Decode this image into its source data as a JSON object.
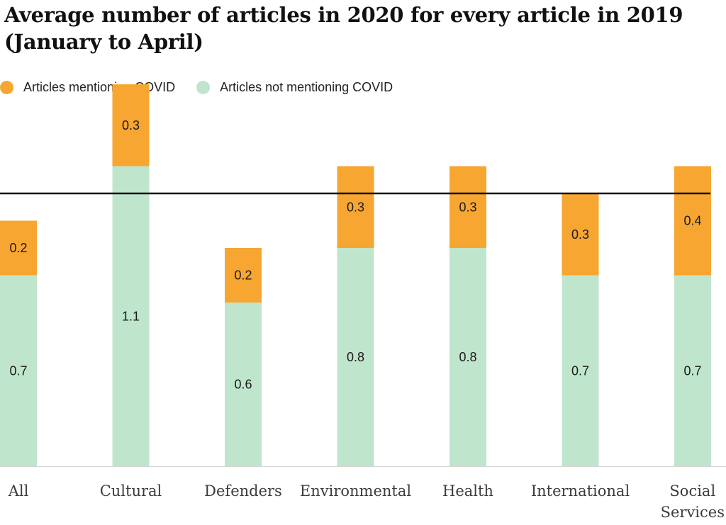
{
  "title": {
    "line1": "Average number of articles in 2020 for every article in 2019",
    "line2": "(January to April)"
  },
  "colors": {
    "mentioning": "#f7a631",
    "not_mentioning": "#c0e5cd",
    "reference_line": "#111111",
    "baseline": "#d4d4d4"
  },
  "legend": [
    {
      "label": "Articles mentioning COVID",
      "color": "#f7a631"
    },
    {
      "label": "Articles not mentioning COVID",
      "color": "#c0e5cd"
    }
  ],
  "chart_data": {
    "type": "bar",
    "stacked": true,
    "categories": [
      "All",
      "Cultural",
      "Defenders",
      "Environmental",
      "Health",
      "International",
      "Social Services"
    ],
    "category_lines": [
      [
        "All"
      ],
      [
        "Cultural"
      ],
      [
        "Defenders"
      ],
      [
        "Environmental"
      ],
      [
        "Health"
      ],
      [
        "International"
      ],
      [
        "Social",
        "Services"
      ]
    ],
    "series": [
      {
        "name": "Articles not mentioning COVID",
        "color": "#c0e5cd",
        "values": [
          0.7,
          1.1,
          0.6,
          0.8,
          0.8,
          0.7,
          0.7
        ],
        "labels": [
          "0.7",
          "1.1",
          "0.6",
          "0.8",
          "0.8",
          "0.7",
          "0.7"
        ]
      },
      {
        "name": "Articles mentioning COVID",
        "color": "#f7a631",
        "values": [
          0.2,
          0.3,
          0.2,
          0.3,
          0.3,
          0.3,
          0.4
        ],
        "labels": [
          "0.2",
          "0.3",
          "0.2",
          "0.3",
          "0.3",
          "0.3",
          "0.4"
        ]
      }
    ],
    "reference_line": 1.0,
    "ylim": [
      0,
      1.4
    ],
    "xlabel": "",
    "ylabel": "",
    "grid": false,
    "legend_position": "top-left"
  }
}
